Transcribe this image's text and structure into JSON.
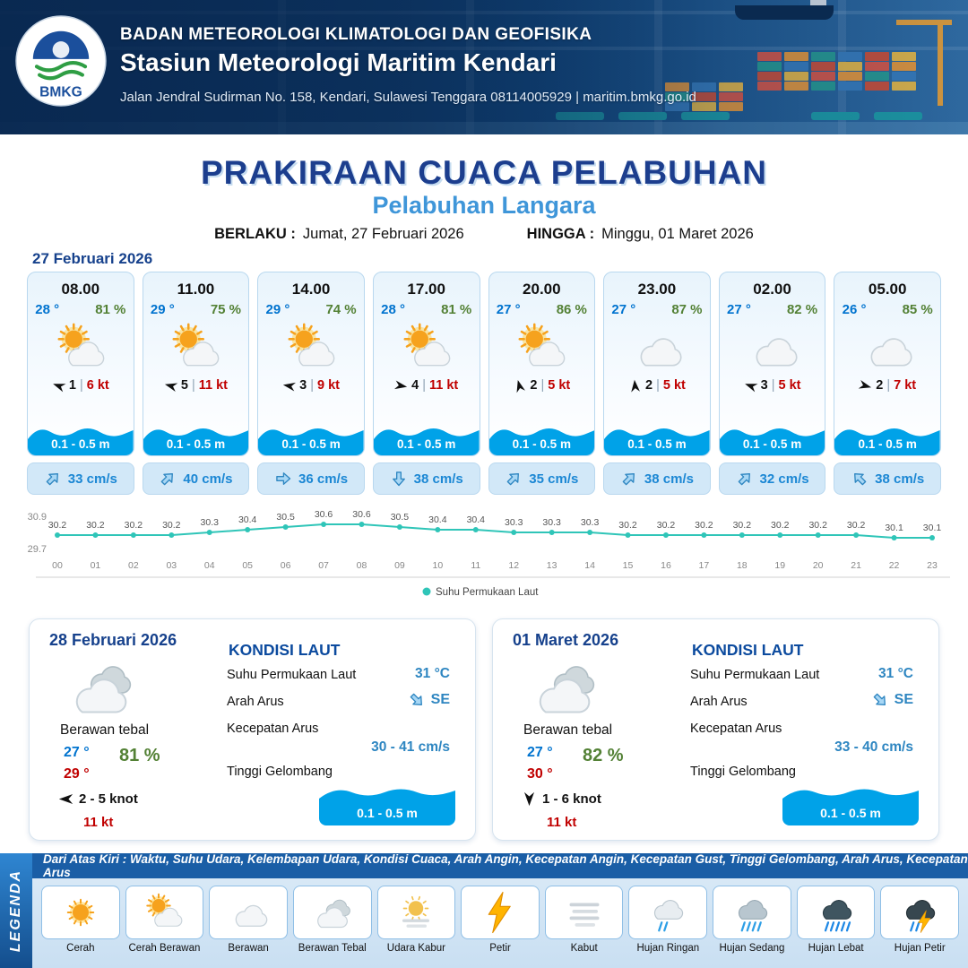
{
  "colors": {
    "accent": "#1c3e8e",
    "port_blue": "#3f96d9",
    "temp_blue": "#0073cf",
    "rh_green": "#538135",
    "gust_red": "#c00000",
    "wave_blue": "#00a2e8",
    "current_blue": "#1b87d4",
    "line_teal": "#2fc5b8",
    "header_navy": "#0e3a6b"
  },
  "header": {
    "logo_text": "BMKG",
    "org": "BADAN METEOROLOGI KLIMATOLOGI DAN GEOFISIKA",
    "station": "Stasiun Meteorologi Maritim Kendari",
    "address": "Jalan Jendral Sudirman No. 158, Kendari, Sulawesi Tenggara  08114005929 | maritim.bmkg.go.id"
  },
  "title": {
    "main": "PRAKIRAAN CUACA PELABUHAN",
    "port": "Pelabuhan Langara",
    "berlaku_label": "BERLAKU :",
    "berlaku_value": "Jumat, 27 Februari 2026",
    "hingga_label": "HINGGA :",
    "hingga_value": "Minggu, 01 Maret 2026"
  },
  "forecast_date": "27 Februari 2026",
  "cards_separator": "|",
  "cards": [
    {
      "time": "08.00",
      "temp": "28 °",
      "rh": "81 %",
      "icon": "cerah-berawan",
      "wind_deg": 200,
      "wind_speed": "1",
      "gust": "6 kt",
      "wave": "0.1 - 0.5 m",
      "current": "33 cm/s",
      "current_deg": 315
    },
    {
      "time": "11.00",
      "temp": "29 °",
      "rh": "75 %",
      "icon": "cerah-berawan",
      "wind_deg": 195,
      "wind_speed": "5",
      "gust": "11 kt",
      "wave": "0.1 - 0.5 m",
      "current": "40 cm/s",
      "current_deg": 315
    },
    {
      "time": "14.00",
      "temp": "29 °",
      "rh": "74 %",
      "icon": "cerah-berawan",
      "wind_deg": 190,
      "wind_speed": "3",
      "gust": "9 kt",
      "wave": "0.1 - 0.5 m",
      "current": "36 cm/s",
      "current_deg": 0
    },
    {
      "time": "17.00",
      "temp": "28 °",
      "rh": "81 %",
      "icon": "cerah-berawan",
      "wind_deg": 10,
      "wind_speed": "4",
      "gust": "11 kt",
      "wave": "0.1 - 0.5 m",
      "current": "38 cm/s",
      "current_deg": 90
    },
    {
      "time": "20.00",
      "temp": "27 °",
      "rh": "86 %",
      "icon": "cerah-berawan",
      "wind_deg": 255,
      "wind_speed": "2",
      "gust": "5 kt",
      "wave": "0.1 - 0.5 m",
      "current": "35 cm/s",
      "current_deg": 315
    },
    {
      "time": "23.00",
      "temp": "27 °",
      "rh": "87 %",
      "icon": "berawan",
      "wind_deg": 265,
      "wind_speed": "2",
      "gust": "5 kt",
      "wave": "0.1 - 0.5 m",
      "current": "38 cm/s",
      "current_deg": 315
    },
    {
      "time": "02.00",
      "temp": "27 °",
      "rh": "82 %",
      "icon": "berawan",
      "wind_deg": 200,
      "wind_speed": "3",
      "gust": "5 kt",
      "wave": "0.1 - 0.5 m",
      "current": "32 cm/s",
      "current_deg": 315
    },
    {
      "time": "05.00",
      "temp": "26 °",
      "rh": "85 %",
      "icon": "berawan",
      "wind_deg": 15,
      "wind_speed": "2",
      "gust": "7 kt",
      "wave": "0.1 - 0.5 m",
      "current": "38 cm/s",
      "current_deg": 225
    }
  ],
  "chart_data": {
    "type": "line",
    "title": "",
    "xlabel": "",
    "ylabel": "",
    "x": [
      "00",
      "01",
      "02",
      "03",
      "04",
      "05",
      "06",
      "07",
      "08",
      "09",
      "10",
      "11",
      "12",
      "13",
      "14",
      "15",
      "16",
      "17",
      "18",
      "19",
      "20",
      "21",
      "22",
      "23"
    ],
    "series": [
      {
        "name": "Suhu Permukaan Laut",
        "values": [
          30.2,
          30.2,
          30.2,
          30.2,
          30.3,
          30.4,
          30.5,
          30.6,
          30.6,
          30.5,
          30.4,
          30.4,
          30.3,
          30.3,
          30.3,
          30.2,
          30.2,
          30.2,
          30.2,
          30.2,
          30.2,
          30.2,
          30.1,
          30.1
        ]
      }
    ],
    "ylim": [
      29.7,
      30.9
    ],
    "line_color": "#2fc5b8",
    "legend": "Suhu Permukaan Laut",
    "legend_position": "bottom",
    "grid": false
  },
  "daily": [
    {
      "date": "28 Februari 2026",
      "icon": "berawan-tebal",
      "condition": "Berawan tebal",
      "temp_min": "27 °",
      "temp_max": "29 °",
      "rh": "81 %",
      "wind_deg": 180,
      "wind": "2  - 5 knot",
      "gust": "11 kt",
      "sea": {
        "title": "KONDISI LAUT",
        "sst_label": "Suhu Permukaan Laut",
        "sst": "31 °C",
        "arus_label": "Arah Arus",
        "arus_dir": "SE",
        "arus_deg": 45,
        "kec_label": "Kecepatan Arus",
        "kec": "30 - 41 cm/s",
        "gel_label": "Tinggi Gelombang",
        "gel": "0.1 - 0.5 m"
      }
    },
    {
      "date": "01 Maret 2026",
      "icon": "berawan-tebal",
      "condition": "Berawan tebal",
      "temp_min": "27 °",
      "temp_max": "30 °",
      "rh": "82 %",
      "wind_deg": 90,
      "wind": "1  - 6 knot",
      "gust": "11 kt",
      "sea": {
        "title": "KONDISI LAUT",
        "sst_label": "Suhu Permukaan Laut",
        "sst": "31 °C",
        "arus_label": "Arah Arus",
        "arus_dir": "SE",
        "arus_deg": 45,
        "kec_label": "Kecepatan Arus",
        "kec": "33 - 40 cm/s",
        "gel_label": "Tinggi Gelombang",
        "gel": "0.1 - 0.5 m"
      }
    }
  ],
  "legend": {
    "title": "LEGENDA",
    "note": "Dari Atas Kiri : Waktu, Suhu Udara, Kelembapan Udara, Kondisi Cuaca, Arah Angin, Kecepatan Angin, Kecepatan Gust, Tinggi Gelombang, Arah Arus, Kecepatan Arus",
    "items": [
      {
        "label": "Cerah",
        "icon": "cerah"
      },
      {
        "label": "Cerah Berawan",
        "icon": "cerah-berawan"
      },
      {
        "label": "Berawan",
        "icon": "berawan"
      },
      {
        "label": "Berawan Tebal",
        "icon": "berawan-tebal"
      },
      {
        "label": "Udara Kabur",
        "icon": "udara-kabur"
      },
      {
        "label": "Petir",
        "icon": "petir"
      },
      {
        "label": "Kabut",
        "icon": "kabut"
      },
      {
        "label": "Hujan Ringan",
        "icon": "hujan-ringan"
      },
      {
        "label": "Hujan Sedang",
        "icon": "hujan-sedang"
      },
      {
        "label": "Hujan Lebat",
        "icon": "hujan-lebat"
      },
      {
        "label": "Hujan Petir",
        "icon": "hujan-petir"
      }
    ]
  }
}
